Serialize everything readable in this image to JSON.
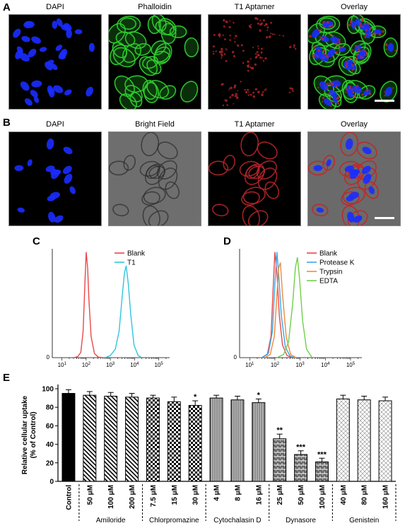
{
  "panels": {
    "A": {
      "label": "A",
      "titles": [
        "DAPI",
        "Phalloidin",
        "T1 Aptamer",
        "Overlay"
      ]
    },
    "B": {
      "label": "B",
      "titles": [
        "DAPI",
        "Bright Field",
        "T1 Aptamer",
        "Overlay"
      ]
    }
  },
  "colors": {
    "dapi": "#1a2cff",
    "phalloidin": "#2ecc2e",
    "aptamer": "#c0262a",
    "blank": "#e8484a",
    "t1": "#2ec6e0",
    "protease_k": "#3aa8e8",
    "trypsin": "#f08a3a",
    "edta": "#6ed04a"
  },
  "chart_data": [
    {
      "panel": "C",
      "type": "line",
      "xscale": "log",
      "x_ticks": [
        "10^1",
        "10^2",
        "10^3",
        "10^4",
        "10^5"
      ],
      "y_tick": "0",
      "legend_position": "top-right",
      "series": [
        {
          "name": "Blank",
          "color": "#e8484a",
          "points": [
            [
              30,
              0
            ],
            [
              45,
              0.01
            ],
            [
              60,
              0.05
            ],
            [
              75,
              0.25
            ],
            [
              90,
              0.75
            ],
            [
              100,
              1.0
            ],
            [
              115,
              0.85
            ],
            [
              130,
              0.55
            ],
            [
              160,
              0.2
            ],
            [
              220,
              0.04
            ],
            [
              320,
              0.005
            ],
            [
              500,
              0
            ]
          ]
        },
        {
          "name": "T1",
          "color": "#2ec6e0",
          "points": [
            [
              600,
              0
            ],
            [
              1000,
              0.02
            ],
            [
              1600,
              0.08
            ],
            [
              2300,
              0.25
            ],
            [
              3000,
              0.55
            ],
            [
              3800,
              0.8
            ],
            [
              4500,
              0.87
            ],
            [
              5500,
              0.7
            ],
            [
              7000,
              0.4
            ],
            [
              9500,
              0.12
            ],
            [
              14000,
              0.02
            ],
            [
              20000,
              0
            ]
          ]
        }
      ]
    },
    {
      "panel": "D",
      "type": "line",
      "xscale": "log",
      "x_ticks": [
        "10^1",
        "10^2",
        "10^3",
        "10^4",
        "10^5"
      ],
      "y_tick": "0",
      "legend_position": "top-right",
      "series": [
        {
          "name": "Blank",
          "color": "#e8484a",
          "points": [
            [
              30,
              0
            ],
            [
              50,
              0.03
            ],
            [
              70,
              0.2
            ],
            [
              85,
              0.65
            ],
            [
              100,
              1.0
            ],
            [
              120,
              0.8
            ],
            [
              150,
              0.4
            ],
            [
              200,
              0.12
            ],
            [
              300,
              0.02
            ],
            [
              500,
              0
            ]
          ]
        },
        {
          "name": "Protease K",
          "color": "#3aa8e8",
          "points": [
            [
              30,
              0
            ],
            [
              55,
              0.04
            ],
            [
              80,
              0.25
            ],
            [
              100,
              0.7
            ],
            [
              120,
              1.0
            ],
            [
              140,
              0.8
            ],
            [
              180,
              0.4
            ],
            [
              260,
              0.1
            ],
            [
              400,
              0.015
            ],
            [
              650,
              0
            ]
          ]
        },
        {
          "name": "Trypsin",
          "color": "#f08a3a",
          "points": [
            [
              40,
              0
            ],
            [
              65,
              0.03
            ],
            [
              95,
              0.2
            ],
            [
              120,
              0.6
            ],
            [
              140,
              0.85
            ],
            [
              165,
              0.9
            ],
            [
              200,
              0.6
            ],
            [
              280,
              0.2
            ],
            [
              420,
              0.03
            ],
            [
              700,
              0
            ]
          ]
        },
        {
          "name": "EDTA",
          "color": "#6ed04a",
          "points": [
            [
              120,
              0
            ],
            [
              220,
              0.03
            ],
            [
              350,
              0.15
            ],
            [
              500,
              0.5
            ],
            [
              650,
              0.85
            ],
            [
              780,
              0.95
            ],
            [
              950,
              0.75
            ],
            [
              1250,
              0.35
            ],
            [
              1800,
              0.08
            ],
            [
              3000,
              0
            ]
          ]
        }
      ]
    },
    {
      "panel": "E",
      "type": "bar",
      "ylabel": "Relative cellular uptake\n(% of Control)",
      "ylabel_lines": [
        "Relative cellular uptake",
        "(% of Control)"
      ],
      "ylim": [
        0,
        100
      ],
      "y_ticks": [
        "0",
        "20",
        "40",
        "60",
        "80",
        "100"
      ],
      "categories": [
        "Control",
        "50 μM",
        "100 μM",
        "200 μM",
        "7.5 μM",
        "15 μM",
        "30 μM",
        "4 μM",
        "8 μM",
        "16 μM",
        "25 μM",
        "50 μM",
        "100 μM",
        "40 μM",
        "80 μM",
        "160 μM"
      ],
      "values": [
        95,
        93,
        92,
        91,
        90,
        86,
        82,
        90,
        88,
        85,
        46,
        29,
        21,
        89,
        88,
        87
      ],
      "errors": [
        4,
        4,
        4,
        4,
        3,
        5,
        5,
        3,
        4,
        4,
        5,
        4,
        4,
        4,
        4,
        4
      ],
      "significance": [
        "",
        "",
        "",
        "",
        "",
        "",
        "*",
        "",
        "",
        "*",
        "**",
        "***",
        "***",
        "",
        "",
        ""
      ],
      "groups": [
        {
          "name": "Amiloride",
          "start": 1,
          "end": 3
        },
        {
          "name": "Chlorpromazine",
          "start": 4,
          "end": 6
        },
        {
          "name": "Cytochalasin D",
          "start": 7,
          "end": 9
        },
        {
          "name": "Dynasore",
          "start": 10,
          "end": 12
        },
        {
          "name": "Genistein",
          "start": 13,
          "end": 15
        }
      ]
    }
  ],
  "labels": {
    "C": "C",
    "D": "D",
    "E": "E"
  }
}
